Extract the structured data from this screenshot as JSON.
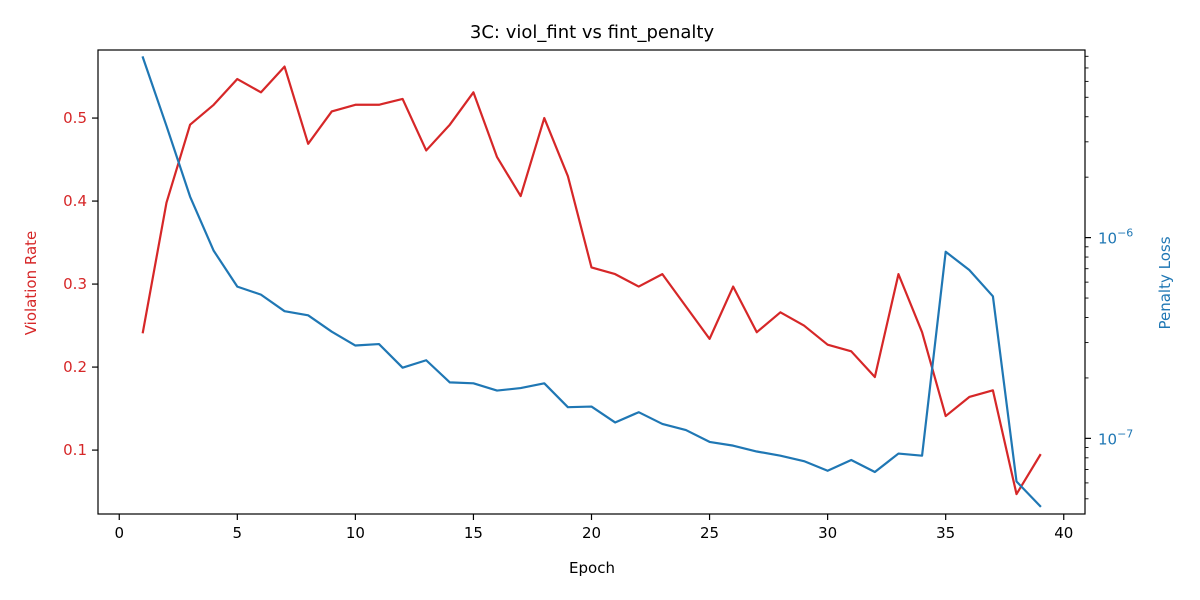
{
  "chart_data": {
    "type": "line",
    "title": "3C: viol_fint vs fint_penalty",
    "xlabel": "Epoch",
    "ylabel_left": "Violation Rate",
    "ylabel_right": "Penalty Loss",
    "xlim": [
      -0.9,
      40.9
    ],
    "ylim_left": [
      0.023,
      0.582
    ],
    "ylim_right": [
      4.2e-08,
      8.6e-06
    ],
    "right_scale": "log",
    "x_ticks": [
      0,
      5,
      10,
      15,
      20,
      25,
      30,
      35,
      40
    ],
    "y_left_ticks": [
      0.1,
      0.2,
      0.3,
      0.4,
      0.5
    ],
    "y_right_ticks": [
      {
        "value": 1e-07,
        "base": "10",
        "exp": "−7"
      },
      {
        "value": 1e-06,
        "base": "10",
        "exp": "−6"
      }
    ],
    "grid": false,
    "x": [
      1,
      2,
      3,
      4,
      5,
      6,
      7,
      8,
      9,
      10,
      11,
      12,
      13,
      14,
      15,
      16,
      17,
      18,
      19,
      20,
      21,
      22,
      23,
      24,
      25,
      26,
      27,
      28,
      29,
      30,
      31,
      32,
      33,
      34,
      35,
      36,
      37,
      38,
      39
    ],
    "series": [
      {
        "name": "Violation Rate",
        "axis": "left",
        "color": "#d62728",
        "values": [
          0.242,
          0.398,
          0.492,
          0.516,
          0.547,
          0.531,
          0.562,
          0.469,
          0.508,
          0.516,
          0.516,
          0.523,
          0.461,
          0.492,
          0.531,
          0.453,
          0.406,
          0.5,
          0.43,
          0.32,
          0.312,
          0.297,
          0.312,
          0.273,
          0.234,
          0.297,
          0.242,
          0.266,
          0.25,
          0.227,
          0.219,
          0.188,
          0.312,
          0.242,
          0.141,
          0.164,
          0.172,
          0.047,
          0.094
        ]
      },
      {
        "name": "Penalty Loss",
        "axis": "right",
        "color": "#1f77b4",
        "values": [
          7.9e-06,
          3.6e-06,
          1.6e-06,
          8.6e-07,
          5.7e-07,
          5.2e-07,
          4.3e-07,
          4.1e-07,
          3.4e-07,
          2.9e-07,
          2.95e-07,
          2.25e-07,
          2.45e-07,
          1.9e-07,
          1.88e-07,
          1.73e-07,
          1.78e-07,
          1.88e-07,
          1.43e-07,
          1.44e-07,
          1.2e-07,
          1.35e-07,
          1.18e-07,
          1.1e-07,
          9.6e-08,
          9.2e-08,
          8.6e-08,
          8.2e-08,
          7.7e-08,
          6.9e-08,
          7.8e-08,
          6.8e-08,
          8.4e-08,
          8.2e-08,
          8.5e-07,
          6.9e-07,
          5.1e-07,
          6.1e-08,
          4.6e-08
        ]
      }
    ]
  }
}
